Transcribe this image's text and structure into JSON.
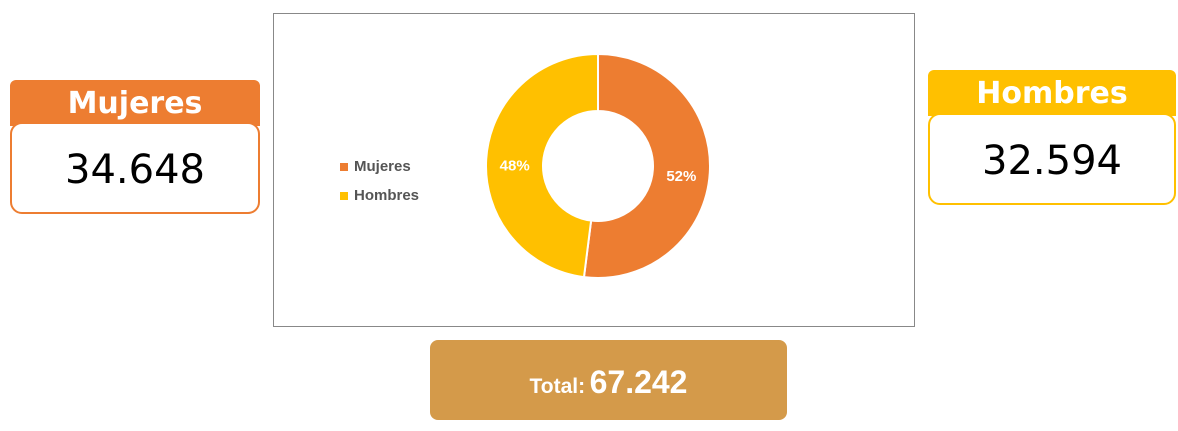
{
  "cards": [
    {
      "title": "Mujeres",
      "value": "34.648"
    },
    {
      "title": "Hombres",
      "value": "32.594"
    }
  ],
  "total": {
    "label": "Total:",
    "value": "67.242"
  },
  "chart_data": {
    "type": "donut",
    "categories": [
      "Mujeres",
      "Hombres"
    ],
    "values": [
      52,
      48
    ],
    "value_labels": [
      "52%",
      "48%"
    ],
    "colors": [
      "#ED7D31",
      "#FFC000"
    ],
    "legend": "left"
  }
}
